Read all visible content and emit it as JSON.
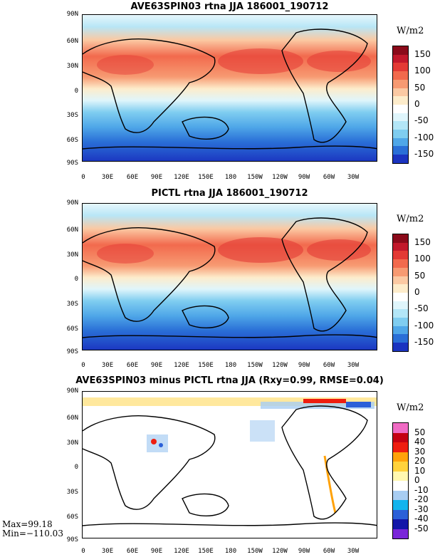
{
  "panels": [
    {
      "title": "AVE63SPIN03 rtna JJA 186001_190712",
      "units": "W/m2",
      "colorbar_labels": [
        "150",
        "100",
        "50",
        "0",
        "-50",
        "-100",
        "-150"
      ],
      "colors": [
        "#8b0a1a",
        "#c2182b",
        "#e33a35",
        "#f26a4d",
        "#f79a72",
        "#fbc9a3",
        "#fdeccb",
        "#ffffff",
        "#dff5fb",
        "#b3e6f7",
        "#7fcdf0",
        "#4fa7e8",
        "#2a6fd7",
        "#1b34c0"
      ]
    },
    {
      "title": "PICTL rtna JJA 186001_190712",
      "units": "W/m2",
      "colorbar_labels": [
        "150",
        "100",
        "50",
        "0",
        "-50",
        "-100",
        "-150"
      ],
      "colors": [
        "#8b0a1a",
        "#c2182b",
        "#e33a35",
        "#f26a4d",
        "#f79a72",
        "#fbc9a3",
        "#fdeccb",
        "#ffffff",
        "#dff5fb",
        "#b3e6f7",
        "#7fcdf0",
        "#4fa7e8",
        "#2a6fd7",
        "#1b34c0"
      ]
    },
    {
      "title": "AVE63SPIN03 minus PICTL rtna JJA (Rxy=0.99, RMSE=0.04)",
      "units": "W/m2",
      "colorbar_labels": [
        "50",
        "40",
        "30",
        "20",
        "10",
        "0",
        "-10",
        "-20",
        "-30",
        "-40",
        "-50"
      ],
      "colors": [
        "#f06bc4",
        "#c40012",
        "#ee1d0f",
        "#ffa20a",
        "#ffd23c",
        "#fff8b0",
        "#ffffff",
        "#a8cdf2",
        "#13b4ee",
        "#2b60d8",
        "#1316a8",
        "#7a26d9"
      ]
    }
  ],
  "lat_labels": [
    "90N",
    "60N",
    "30N",
    "0",
    "30S",
    "60S",
    "90S"
  ],
  "lon_labels": [
    "0",
    "30E",
    "60E",
    "90E",
    "120E",
    "150E",
    "180",
    "150W",
    "120W",
    "90W",
    "60W",
    "30W"
  ],
  "stats": {
    "max": "Max=99.18",
    "min": "Min=−110.03"
  }
}
